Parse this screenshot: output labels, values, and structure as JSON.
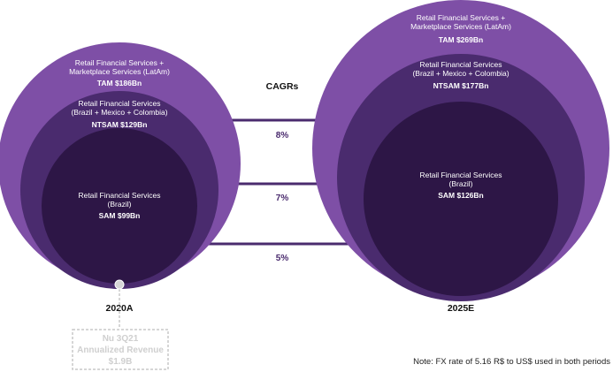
{
  "colors": {
    "tam": "#7e4fa6",
    "ntsam": "#4a2b6e",
    "sam": "#2d1646",
    "connector": "#4a2b6e",
    "cagr_text": "#4a2b6e",
    "revenue_box": "#c9c9c9"
  },
  "left": {
    "period": "2020A",
    "tam": {
      "line1": "Retail Financial Services +",
      "line2": "Marketplace Services (LatAm)",
      "value": "TAM $186Bn"
    },
    "ntsam": {
      "line1": "Retail Financial Services",
      "line2": "(Brazil + Mexico + Colombia)",
      "value": "NTSAM $129Bn"
    },
    "sam": {
      "line1": "Retail Financial Services",
      "line2": "(Brazil)",
      "value": "SAM $99Bn"
    }
  },
  "right": {
    "period": "2025E",
    "tam": {
      "line1": "Retail Financial Services +",
      "line2": "Marketplace Services (LatAm)",
      "value": "TAM $269Bn"
    },
    "ntsam": {
      "line1": "Retail Financial Services",
      "line2": "(Brazil + Mexico + Colombia)",
      "value": "NTSAM $177Bn"
    },
    "sam": {
      "line1": "Retail Financial Services",
      "line2": "(Brazil)",
      "value": "SAM $126Bn"
    }
  },
  "cagrs": {
    "title": "CAGRs",
    "tam": "8%",
    "ntsam": "7%",
    "sam": "5%"
  },
  "revenue": {
    "line1": "Nu 3Q21",
    "line2": "Annualized Revenue",
    "line3": "$1.9B"
  },
  "note": "Note: FX rate of 5.16 R$ to US$ used in both periods"
}
